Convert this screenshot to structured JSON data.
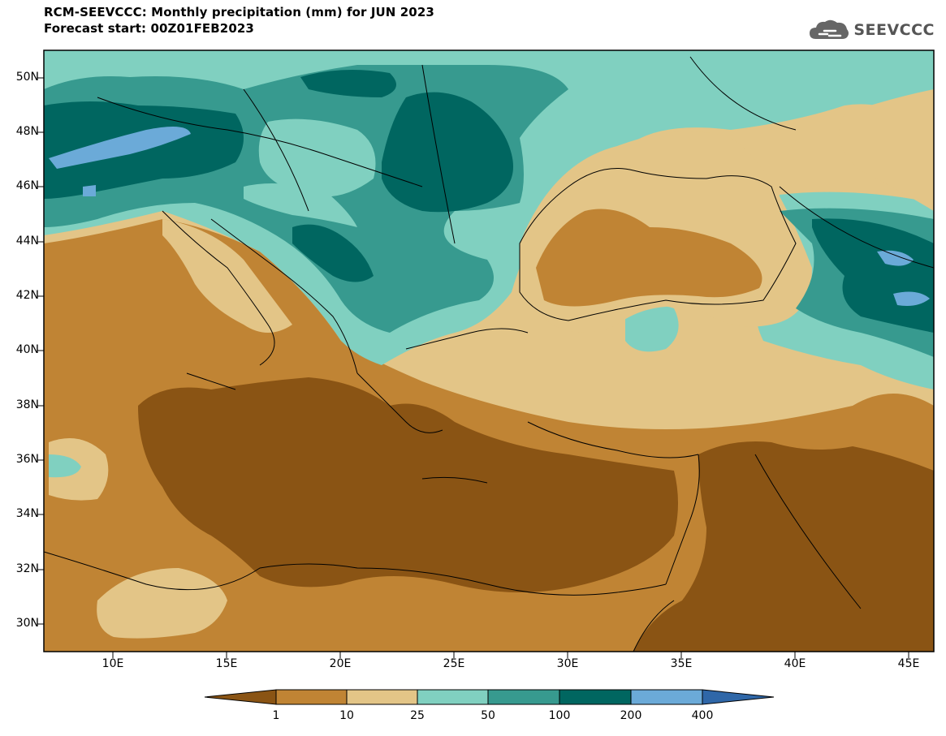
{
  "title": {
    "line1": "RCM-SEEVCCC: Monthly precipitation (mm) for JUN 2023",
    "line2": "Forecast start: 00Z01FEB2023"
  },
  "logo": {
    "text": "SEEVCCC",
    "icon": "cloud-icon"
  },
  "axes": {
    "y_labels": [
      "50N",
      "48N",
      "46N",
      "44N",
      "42N",
      "40N",
      "38N",
      "36N",
      "34N",
      "32N",
      "30N"
    ],
    "x_labels": [
      "10E",
      "15E",
      "20E",
      "25E",
      "30E",
      "35E",
      "40E",
      "45E"
    ]
  },
  "colorbar": {
    "labels": [
      "1",
      "10",
      "25",
      "50",
      "100",
      "200",
      "400"
    ],
    "colors": [
      "#8a5414",
      "#c08434",
      "#e3c587",
      "#80d0c0",
      "#379a8f",
      "#006660",
      "#6baad8",
      "#2f67a8"
    ]
  },
  "map_colors": {
    "very_dry": "#8a5414",
    "dry": "#c08434",
    "moderate": "#e3c587",
    "light_wet": "#80d0c0",
    "wet": "#379a8f",
    "very_wet": "#006660",
    "extreme": "#6baad8"
  }
}
